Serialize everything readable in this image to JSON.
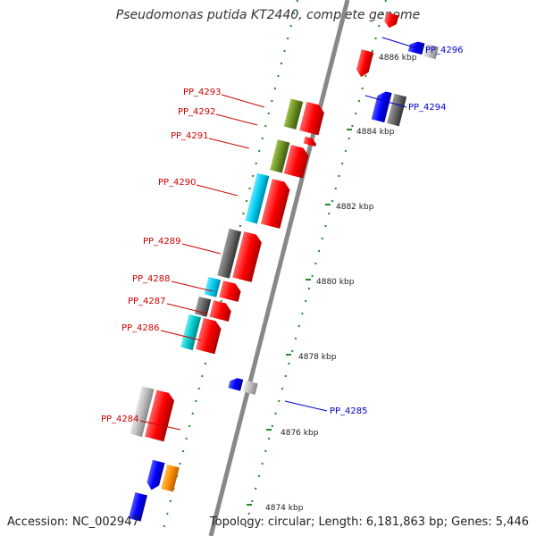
{
  "title": "Pseudomonas putida KT2440, complete genome",
  "accession": "Accession: NC_002947",
  "summary": "Topology: circular; Length: 6,181,863 bp; Genes: 5,446",
  "colors": {
    "forward_gene": "#ff0000",
    "reverse_gene": "#0000ff",
    "gray": "#666666",
    "light_gray": "#bbbbbb",
    "cyan": "#00ccee",
    "teal": "#00cccc",
    "olive": "#6b8e23",
    "orange": "#ff8c00",
    "tick": "#228b22",
    "backbone": "#888888",
    "label_forward": "#cc0000",
    "label_reverse": "#0000cc"
  },
  "kbp_labels": [
    "4886 kbp",
    "4884 kbp",
    "4882 kbp",
    "4880 kbp",
    "4878 kbp",
    "4876 kbp",
    "4874 kbp"
  ],
  "left_labels": [
    "PP_4293",
    "PP_4292",
    "PP_4291",
    "PP_4290",
    "PP_4289",
    "PP_4288",
    "PP_4287",
    "PP_4286",
    "PP_4284"
  ],
  "right_labels": [
    "PP_4296",
    "PP_4294",
    "PP_4285"
  ]
}
